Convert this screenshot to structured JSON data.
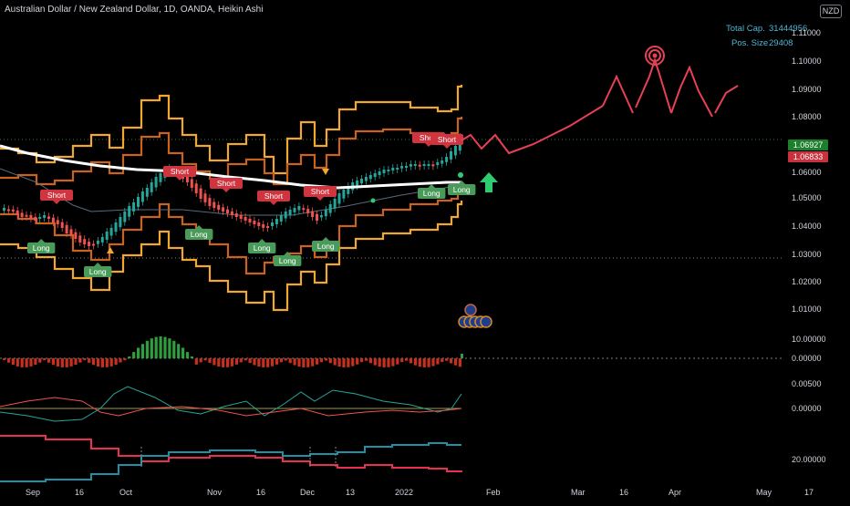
{
  "header": {
    "symbol_line": "Australian Dollar / New Zealand Dollar, 1D, OANDA, Heikin Ashi",
    "currency_badge": "NZD"
  },
  "info_panel": {
    "total_cap_label": "Total Cap.",
    "total_cap_value": "31444956",
    "pos_size_label": "Pos. Size",
    "pos_size_value": "29408"
  },
  "price_axis": {
    "ticks": [
      "1.11000",
      "1.10000",
      "1.09000",
      "1.08000",
      "1.07000",
      "1.06000",
      "1.05000",
      "1.04000",
      "1.03000",
      "1.02000",
      "1.01000"
    ],
    "current_price": "1.06927",
    "second_price": "1.06833",
    "current_color": "#26a69a",
    "second_color": "#ef5350"
  },
  "indicator_axes": {
    "macd_ticks": [
      "10.00000",
      "0.00000"
    ],
    "osc_ticks": [
      "0.00500",
      "0.00000"
    ],
    "dmi_ticks": [
      "20.00000"
    ]
  },
  "time_axis": {
    "labels": [
      "Sep",
      "16",
      "Oct",
      "Nov",
      "16",
      "Dec",
      "13",
      "2022",
      "Feb",
      "Mar",
      "16",
      "Apr",
      "May",
      "17"
    ]
  },
  "signals": {
    "short_label": "Short",
    "long_label": "Long"
  },
  "colors": {
    "background": "#000000",
    "band_outer": "#f0a830",
    "band_inner": "#c8641e",
    "ma_line": "#ffffff",
    "bull": "#26a69a",
    "bear": "#ef5350",
    "projection": "#e84055",
    "osc_line": "#26a69a",
    "dmi_plus": "#1e90a8",
    "dmi_minus": "#e83050"
  },
  "chart_data": {
    "type": "line",
    "title": "Australian Dollar / New Zealand Dollar, 1D, OANDA, Heikin Ashi",
    "x": [
      "Sep",
      "16",
      "Oct",
      "Nov",
      "16",
      "Dec",
      "13",
      "2022"
    ],
    "ylim": [
      1.005,
      1.115
    ],
    "series": [],
    "current_price": 1.06927
  }
}
